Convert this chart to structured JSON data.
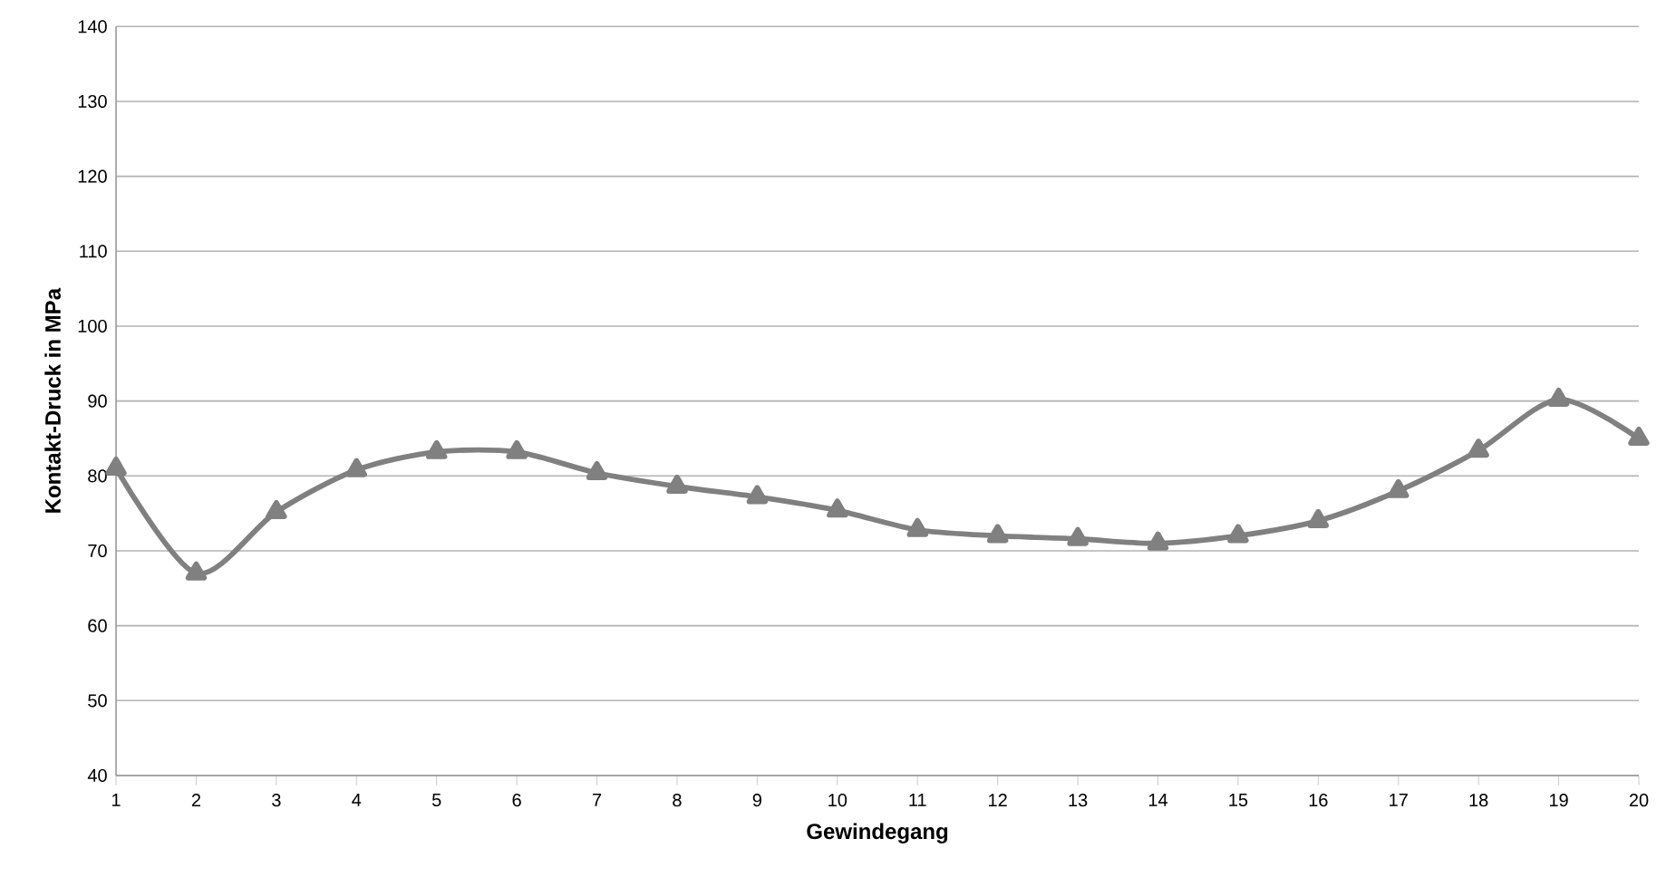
{
  "chart_data": {
    "type": "line",
    "xlabel": "Gewindegang",
    "ylabel": "Kontakt-Druck in MPa",
    "categories": [
      "1",
      "2",
      "3",
      "4",
      "5",
      "6",
      "7",
      "8",
      "9",
      "10",
      "11",
      "12",
      "13",
      "14",
      "15",
      "16",
      "17",
      "18",
      "19",
      "20"
    ],
    "series": [
      {
        "color": "#808080",
        "values": [
          81,
          67,
          75.2,
          80.8,
          83.2,
          83.2,
          80.4,
          78.6,
          77.2,
          75.4,
          72.8,
          72,
          71.6,
          71,
          72,
          74,
          78,
          83.4,
          90.2,
          85
        ]
      }
    ],
    "ylim": [
      40,
      140
    ],
    "yticks": [
      40,
      50,
      60,
      70,
      80,
      90,
      100,
      110,
      120,
      130,
      140
    ],
    "grid": "y",
    "marker": "triangle",
    "line_style": "solid"
  }
}
